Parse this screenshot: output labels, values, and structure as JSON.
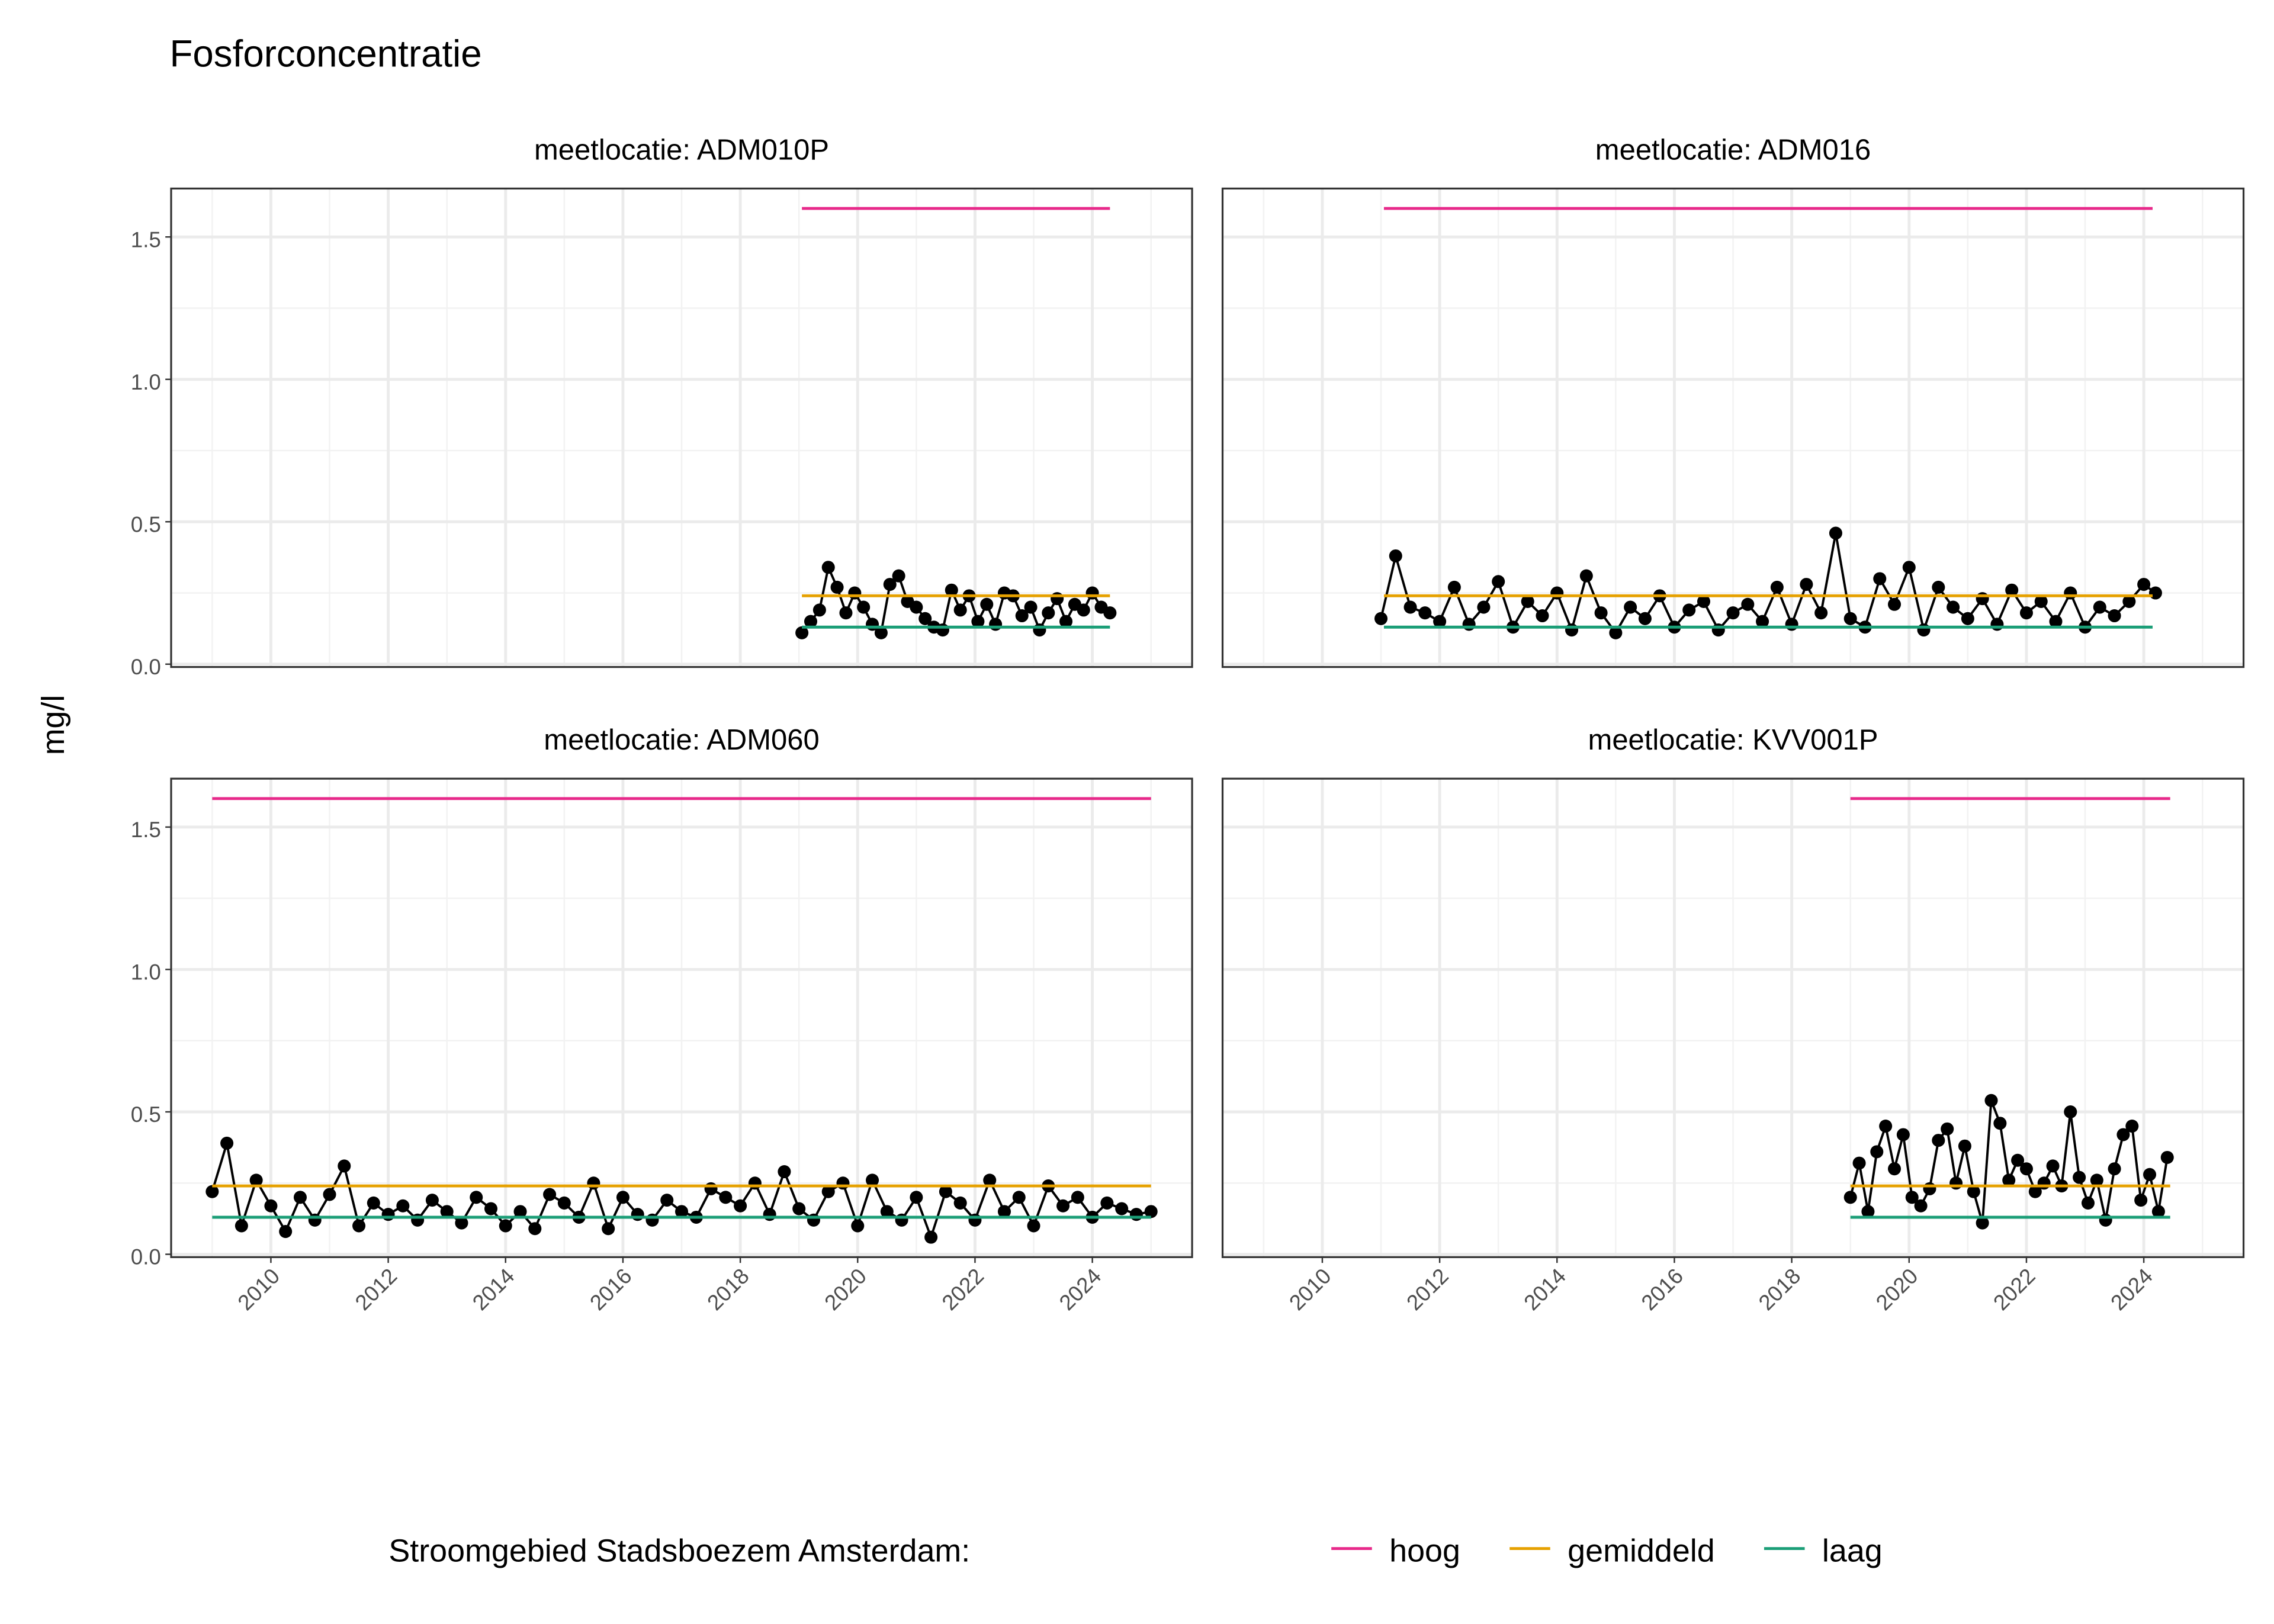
{
  "chart_data": {
    "type": "line",
    "title": "Fosforconcentratie",
    "y_label": "mg/l",
    "legend_title": "Stroomgebied Stadsboezem Amsterdam:",
    "legend_position": "bottom",
    "grid": true,
    "xlim": [
      2008.3,
      2025.7
    ],
    "xticks": [
      2010,
      2012,
      2014,
      2016,
      2018,
      2020,
      2022,
      2024
    ],
    "x_minor_ticks": [
      2009,
      2011,
      2013,
      2015,
      2017,
      2019,
      2021,
      2023,
      2025
    ],
    "ylim": [
      -0.01,
      1.67
    ],
    "yticks": [
      {
        "value": 0,
        "label": "0.0"
      },
      0.5,
      {
        "value": 1,
        "label": "1.0"
      },
      1.5
    ],
    "y_minor_ticks": [
      0.25,
      0.75,
      1.25
    ],
    "panels": [
      {
        "title": "meetlocatie: ADM010P",
        "series": [
          {
            "color": "#000000",
            "marker": true,
            "x": [
              2019.05,
              2019.2,
              2019.35,
              2019.5,
              2019.65,
              2019.8,
              2019.95,
              2020.1,
              2020.25,
              2020.4,
              2020.55,
              2020.7,
              2020.85,
              2021.0,
              2021.15,
              2021.3,
              2021.45,
              2021.6,
              2021.75,
              2021.9,
              2022.05,
              2022.2,
              2022.35,
              2022.5,
              2022.65,
              2022.8,
              2022.95,
              2023.1,
              2023.25,
              2023.4,
              2023.55,
              2023.7,
              2023.85,
              2024.0,
              2024.15,
              2024.3
            ],
            "values": [
              0.11,
              0.15,
              0.19,
              0.34,
              0.27,
              0.18,
              0.25,
              0.2,
              0.14,
              0.11,
              0.28,
              0.31,
              0.22,
              0.2,
              0.16,
              0.13,
              0.12,
              0.26,
              0.19,
              0.24,
              0.15,
              0.21,
              0.14,
              0.25,
              0.24,
              0.17,
              0.2,
              0.12,
              0.18,
              0.23,
              0.15,
              0.21,
              0.19,
              0.25,
              0.2,
              0.18
            ]
          },
          {
            "name": "hoog",
            "color": "#e7298a",
            "x": [
              2019.05,
              2024.3
            ],
            "values": [
              1.6,
              1.6
            ]
          },
          {
            "name": "gemiddeld",
            "color": "#e6a100",
            "x": [
              2019.05,
              2024.3
            ],
            "values": [
              0.24,
              0.24
            ]
          },
          {
            "name": "laag",
            "color": "#1b9e77",
            "x": [
              2019.05,
              2024.3
            ],
            "values": [
              0.13,
              0.13
            ]
          }
        ]
      },
      {
        "title": "meetlocatie: ADM016",
        "series": [
          {
            "color": "#000000",
            "marker": true,
            "x": [
              2011,
              2011.25,
              2011.5,
              2011.75,
              2012,
              2012.25,
              2012.5,
              2012.75,
              2013,
              2013.25,
              2013.5,
              2013.75,
              2014,
              2014.25,
              2014.5,
              2014.75,
              2015,
              2015.25,
              2015.5,
              2015.75,
              2016,
              2016.25,
              2016.5,
              2016.75,
              2017,
              2017.25,
              2017.5,
              2017.75,
              2018,
              2018.25,
              2018.5,
              2018.75,
              2019,
              2019.25,
              2019.5,
              2019.75,
              2020,
              2020.25,
              2020.5,
              2020.75,
              2021,
              2021.25,
              2021.5,
              2021.75,
              2022,
              2022.25,
              2022.5,
              2022.75,
              2023,
              2023.25,
              2023.5,
              2023.75,
              2024,
              2024.2
            ],
            "values": [
              0.16,
              0.38,
              0.2,
              0.18,
              0.15,
              0.27,
              0.14,
              0.2,
              0.29,
              0.13,
              0.22,
              0.17,
              0.25,
              0.12,
              0.31,
              0.18,
              0.11,
              0.2,
              0.16,
              0.24,
              0.13,
              0.19,
              0.22,
              0.12,
              0.18,
              0.21,
              0.15,
              0.27,
              0.14,
              0.28,
              0.18,
              0.46,
              0.16,
              0.13,
              0.3,
              0.21,
              0.34,
              0.12,
              0.27,
              0.2,
              0.16,
              0.23,
              0.14,
              0.26,
              0.18,
              0.22,
              0.15,
              0.25,
              0.13,
              0.2,
              0.17,
              0.22,
              0.28,
              0.25
            ]
          },
          {
            "name": "hoog",
            "color": "#e7298a",
            "x": [
              2011.05,
              2024.15
            ],
            "values": [
              1.6,
              1.6
            ]
          },
          {
            "name": "gemiddeld",
            "color": "#e6a100",
            "x": [
              2011.05,
              2024.15
            ],
            "values": [
              0.24,
              0.24
            ]
          },
          {
            "name": "laag",
            "color": "#1b9e77",
            "x": [
              2011.05,
              2024.15
            ],
            "values": [
              0.13,
              0.13
            ]
          }
        ]
      },
      {
        "title": "meetlocatie: ADM060",
        "series": [
          {
            "color": "#000000",
            "marker": true,
            "x": [
              2009,
              2009.25,
              2009.5,
              2009.75,
              2010,
              2010.25,
              2010.5,
              2010.75,
              2011,
              2011.25,
              2011.5,
              2011.75,
              2012,
              2012.25,
              2012.5,
              2012.75,
              2013,
              2013.25,
              2013.5,
              2013.75,
              2014,
              2014.25,
              2014.5,
              2014.75,
              2015,
              2015.25,
              2015.5,
              2015.75,
              2016,
              2016.25,
              2016.5,
              2016.75,
              2017,
              2017.25,
              2017.5,
              2017.75,
              2018,
              2018.25,
              2018.5,
              2018.75,
              2019,
              2019.25,
              2019.5,
              2019.75,
              2020,
              2020.25,
              2020.5,
              2020.75,
              2021,
              2021.25,
              2021.5,
              2021.75,
              2022,
              2022.25,
              2022.5,
              2022.75,
              2023,
              2023.25,
              2023.5,
              2023.75,
              2024,
              2024.25,
              2024.5,
              2024.75,
              2025
            ],
            "values": [
              0.22,
              0.39,
              0.1,
              0.26,
              0.17,
              0.08,
              0.2,
              0.12,
              0.21,
              0.31,
              0.1,
              0.18,
              0.14,
              0.17,
              0.12,
              0.19,
              0.15,
              0.11,
              0.2,
              0.16,
              0.1,
              0.15,
              0.09,
              0.21,
              0.18,
              0.13,
              0.25,
              0.09,
              0.2,
              0.14,
              0.12,
              0.19,
              0.15,
              0.13,
              0.23,
              0.2,
              0.17,
              0.25,
              0.14,
              0.29,
              0.16,
              0.12,
              0.22,
              0.25,
              0.1,
              0.26,
              0.15,
              0.12,
              0.2,
              0.06,
              0.22,
              0.18,
              0.12,
              0.26,
              0.15,
              0.2,
              0.1,
              0.24,
              0.17,
              0.2,
              0.13,
              0.18,
              0.16,
              0.14,
              0.15
            ]
          },
          {
            "name": "hoog",
            "color": "#e7298a",
            "x": [
              2009,
              2025
            ],
            "values": [
              1.6,
              1.6
            ]
          },
          {
            "name": "gemiddeld",
            "color": "#e6a100",
            "x": [
              2009,
              2025
            ],
            "values": [
              0.24,
              0.24
            ]
          },
          {
            "name": "laag",
            "color": "#1b9e77",
            "x": [
              2009,
              2025
            ],
            "values": [
              0.13,
              0.13
            ]
          }
        ]
      },
      {
        "title": "meetlocatie: KVV001P",
        "series": [
          {
            "color": "#000000",
            "marker": true,
            "x": [
              2019,
              2019.15,
              2019.3,
              2019.45,
              2019.6,
              2019.75,
              2019.9,
              2020.05,
              2020.2,
              2020.35,
              2020.5,
              2020.65,
              2020.8,
              2020.95,
              2021.1,
              2021.25,
              2021.4,
              2021.55,
              2021.7,
              2021.85,
              2022,
              2022.15,
              2022.3,
              2022.45,
              2022.6,
              2022.75,
              2022.9,
              2023.05,
              2023.2,
              2023.35,
              2023.5,
              2023.65,
              2023.8,
              2023.95,
              2024.1,
              2024.25,
              2024.4
            ],
            "values": [
              0.2,
              0.32,
              0.15,
              0.36,
              0.45,
              0.3,
              0.42,
              0.2,
              0.17,
              0.23,
              0.4,
              0.44,
              0.25,
              0.38,
              0.22,
              0.11,
              0.54,
              0.46,
              0.26,
              0.33,
              0.3,
              0.22,
              0.25,
              0.31,
              0.24,
              0.5,
              0.27,
              0.18,
              0.26,
              0.12,
              0.3,
              0.42,
              0.45,
              0.19,
              0.28,
              0.15,
              0.34
            ]
          },
          {
            "name": "hoog",
            "color": "#e7298a",
            "x": [
              2019,
              2024.45
            ],
            "values": [
              1.6,
              1.6
            ]
          },
          {
            "name": "gemiddeld",
            "color": "#e6a100",
            "x": [
              2019,
              2024.45
            ],
            "values": [
              0.24,
              0.24
            ]
          },
          {
            "name": "laag",
            "color": "#1b9e77",
            "x": [
              2019,
              2024.45
            ],
            "values": [
              0.13,
              0.13
            ]
          }
        ]
      }
    ]
  }
}
